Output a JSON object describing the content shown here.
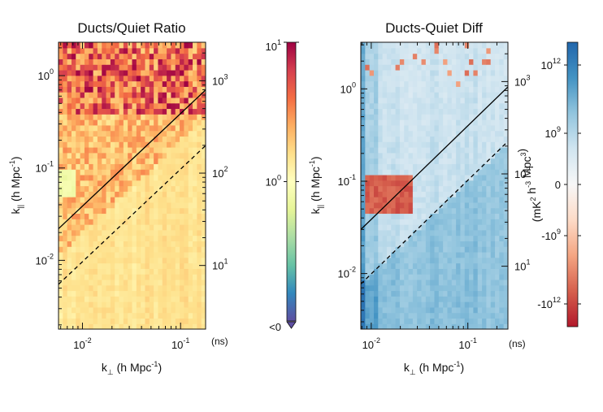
{
  "chart_data": [
    {
      "type": "heatmap",
      "title": "Ducts/Quiet Ratio",
      "xlabel": "k",
      "xlabel_sub": "⊥",
      "xlabel_unit": " (h Mpc",
      "xlabel_exp": "-1",
      "ylabel": "k",
      "ylabel_sub": "||",
      "ylabel_unit": " (h Mpc",
      "ylabel_exp": "-1",
      "xlim": [
        0.0057,
        0.18
      ],
      "ylim": [
        0.0018,
        2.3
      ],
      "x_ticks": [
        {
          "value": 0.01,
          "base": "10",
          "exp": "-2"
        },
        {
          "value": 0.1,
          "base": "10",
          "exp": "-1"
        }
      ],
      "y_ticks": [
        {
          "value": 1,
          "base": "10",
          "exp": "0"
        },
        {
          "value": 0.1,
          "base": "10",
          "exp": "-1"
        },
        {
          "value": 0.01,
          "base": "10",
          "exp": "-2"
        }
      ],
      "right_axis_unit": "(ns)",
      "right_ticks": [
        {
          "value": 0.88,
          "base": "10",
          "exp": "3"
        },
        {
          "value": 0.088,
          "base": "10",
          "exp": "2"
        },
        {
          "value": 0.0088,
          "base": "10",
          "exp": "1"
        }
      ],
      "wedge_solid": {
        "from": [
          0.0057,
          0.022
        ],
        "to": [
          0.18,
          0.7
        ]
      },
      "wedge_dashed": {
        "from": [
          0.0057,
          0.0055
        ],
        "to": [
          0.18,
          0.175
        ]
      },
      "colorbar": {
        "scale": "log",
        "ticks": [
          {
            "label": "10",
            "exp": "1",
            "value": 10
          },
          {
            "label": "10",
            "exp": "0",
            "value": 1
          },
          {
            "label": "<0",
            "exp": "",
            "value": 0
          }
        ],
        "colors": [
          "#5e4fa2",
          "#3288bd",
          "#66c2a5",
          "#abdda4",
          "#e6f598",
          "#ffffbf",
          "#fee08b",
          "#fdae61",
          "#f46d43",
          "#d53e4f",
          "#9e0142"
        ]
      }
    },
    {
      "type": "heatmap",
      "title": "Ducts-Quiet Diff",
      "xlabel": "k",
      "xlabel_sub": "⊥",
      "xlabel_unit": " (h Mpc",
      "xlabel_exp": "-1",
      "ylabel": "k",
      "ylabel_sub": "||",
      "ylabel_unit": " (h Mpc",
      "ylabel_exp": "-1",
      "xlim": [
        0.0078,
        0.26
      ],
      "ylim": [
        0.0025,
        3.2
      ],
      "x_ticks": [
        {
          "value": 0.01,
          "base": "10",
          "exp": "-2"
        },
        {
          "value": 0.1,
          "base": "10",
          "exp": "-1"
        }
      ],
      "y_ticks": [
        {
          "value": 1,
          "base": "10",
          "exp": "0"
        },
        {
          "value": 0.1,
          "base": "10",
          "exp": "-1"
        },
        {
          "value": 0.01,
          "base": "10",
          "exp": "-2"
        }
      ],
      "right_axis_unit": "(ns)",
      "right_ticks": [
        {
          "value": 1.2,
          "base": "10",
          "exp": "3"
        },
        {
          "value": 0.12,
          "base": "10",
          "exp": "2"
        },
        {
          "value": 0.012,
          "base": "10",
          "exp": "1"
        }
      ],
      "wedge_solid": {
        "from": [
          0.0078,
          0.03
        ],
        "to": [
          0.26,
          1.05
        ]
      },
      "wedge_dashed": {
        "from": [
          0.0078,
          0.0077
        ],
        "to": [
          0.26,
          0.27
        ]
      },
      "colorbar": {
        "scale": "symlog",
        "label_parts": [
          {
            "t": "(mK",
            "sup": "2"
          },
          {
            "t": " h",
            "sup": "-3"
          },
          {
            "t": " Mpc",
            "sup": "3"
          },
          {
            "t": ")",
            "sup": ""
          }
        ],
        "ticks": [
          {
            "label": "10",
            "exp": "12",
            "value": 1000000000000.0
          },
          {
            "label": "10",
            "exp": "9",
            "value": 1000000000.0
          },
          {
            "label": "0",
            "exp": "",
            "value": 0
          },
          {
            "label": "-10",
            "exp": "9",
            "value": -1000000000.0
          },
          {
            "label": "-10",
            "exp": "12",
            "value": -1000000000000.0
          }
        ],
        "colors": [
          "#b2182b",
          "#d6604d",
          "#f4a582",
          "#fddbc7",
          "#f7f7f7",
          "#d1e5f0",
          "#92c5de",
          "#4393c3",
          "#2166ac"
        ]
      }
    }
  ]
}
